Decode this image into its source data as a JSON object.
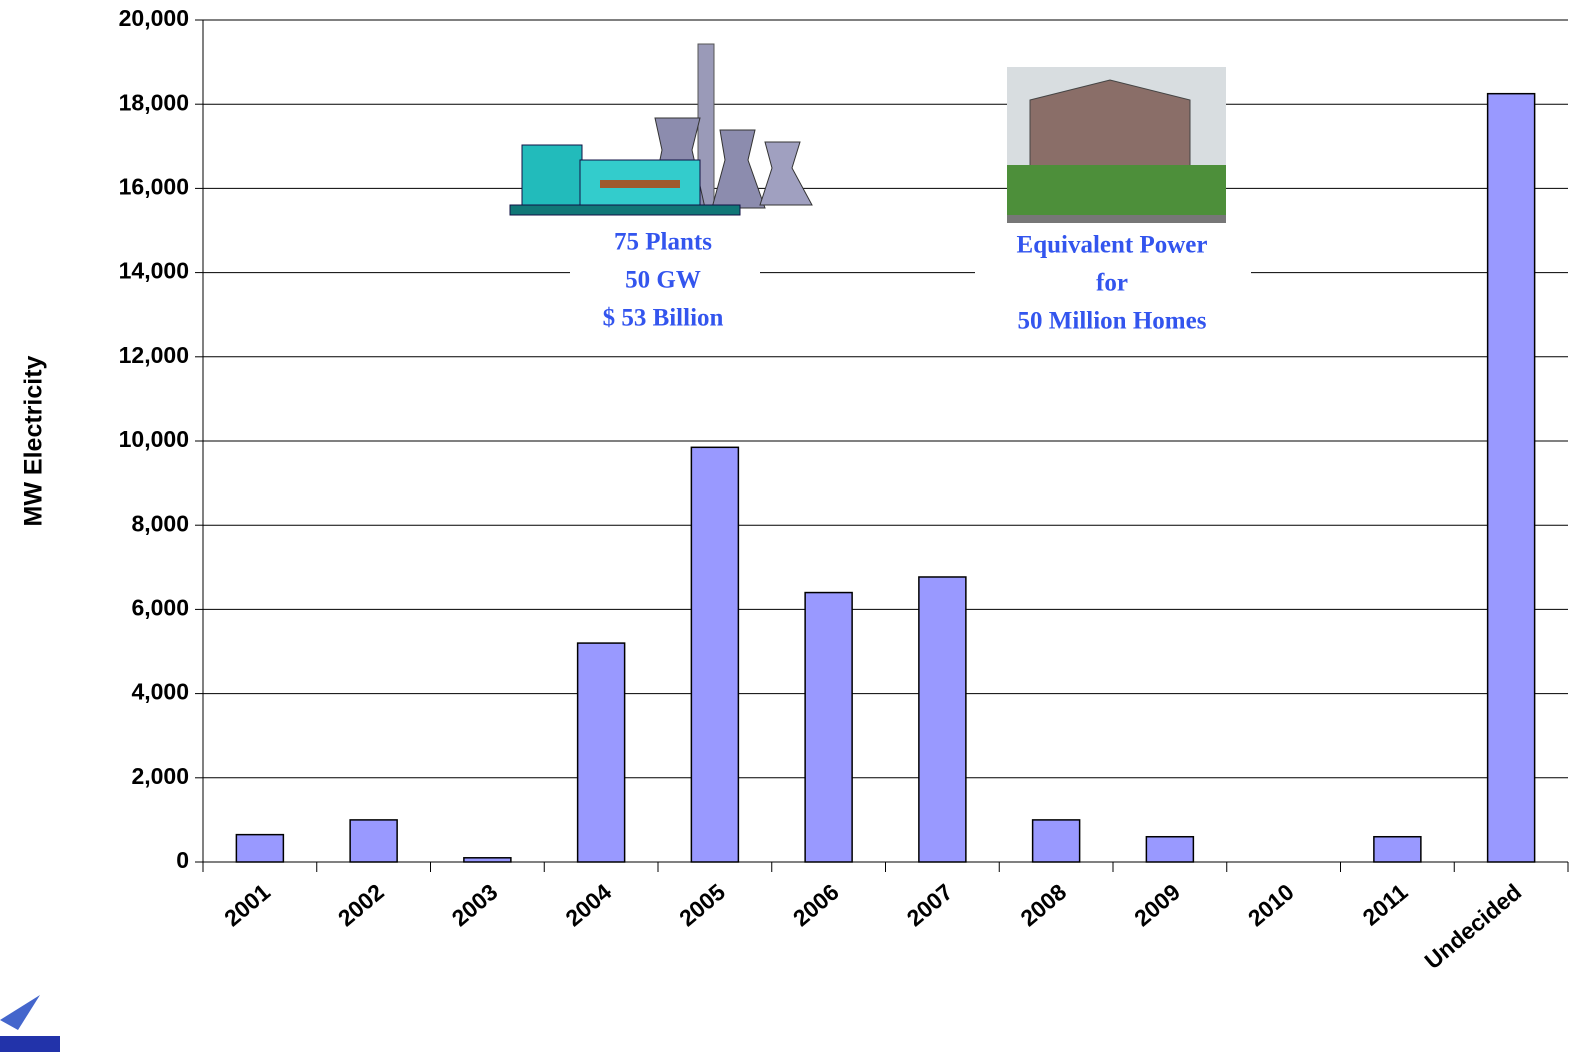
{
  "chart_data": {
    "type": "bar",
    "y_label": "MW Electricity",
    "categories": [
      "2001",
      "2002",
      "2003",
      "2004",
      "2005",
      "2006",
      "2007",
      "2008",
      "2009",
      "2010",
      "2011",
      "Undecided"
    ],
    "values": [
      650,
      1000,
      100,
      5200,
      9850,
      6400,
      6770,
      1000,
      600,
      0,
      600,
      18250
    ],
    "color": "#9999ff",
    "ylim": [
      0,
      20000
    ],
    "yticks": [
      0,
      {
        "value": 2000,
        "label": "2,000"
      },
      {
        "value": 4000,
        "label": "4,000"
      },
      {
        "value": 6000,
        "label": "6,000"
      },
      {
        "value": 8000,
        "label": "8,000"
      },
      {
        "value": 10000,
        "label": "10,000"
      },
      {
        "value": 12000,
        "label": "12,000"
      },
      {
        "value": 14000,
        "label": "14,000"
      },
      {
        "value": 16000,
        "label": "16,000"
      },
      {
        "value": 18000,
        "label": "18,000"
      },
      {
        "value": 20000,
        "label": "20,000"
      }
    ],
    "grid": true,
    "annotations": [
      [
        "75 Plants",
        "50 GW",
        "$ 53 Billion"
      ],
      [
        "Equivalent Power",
        "for",
        "50 Million Homes"
      ]
    ]
  }
}
